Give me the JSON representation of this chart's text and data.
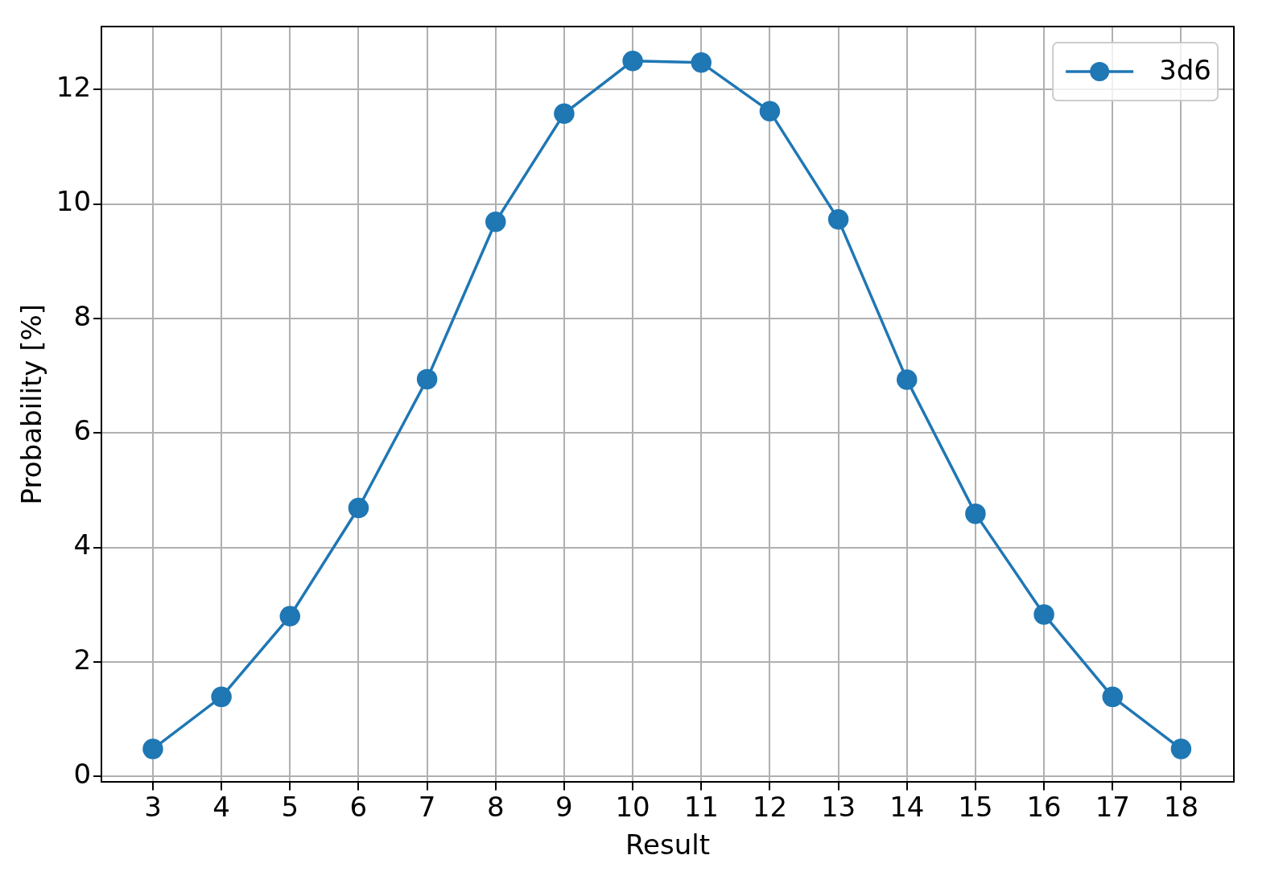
{
  "chart_data": {
    "type": "line",
    "xlabel": "Result",
    "ylabel": "Probability [%]",
    "x": [
      3,
      4,
      5,
      6,
      7,
      8,
      9,
      10,
      11,
      12,
      13,
      14,
      15,
      16,
      17,
      18
    ],
    "series": [
      {
        "name": "3d6",
        "color": "#1f77b4",
        "values": [
          0.48,
          1.39,
          2.8,
          4.69,
          6.94,
          9.69,
          11.58,
          12.5,
          12.47,
          11.62,
          9.73,
          6.93,
          4.59,
          2.83,
          1.39,
          0.48
        ]
      }
    ],
    "xlim": [
      2.25,
      18.77
    ],
    "xticks": [
      3,
      4,
      5,
      6,
      7,
      8,
      9,
      10,
      11,
      12,
      13,
      14,
      15,
      16,
      17,
      18
    ],
    "ylim": [
      -0.1,
      13.1
    ],
    "yticks": [
      0,
      2,
      4,
      6,
      8,
      10,
      12
    ],
    "grid": true,
    "legend": "top right",
    "marker": "circle",
    "line_style": "solid"
  }
}
